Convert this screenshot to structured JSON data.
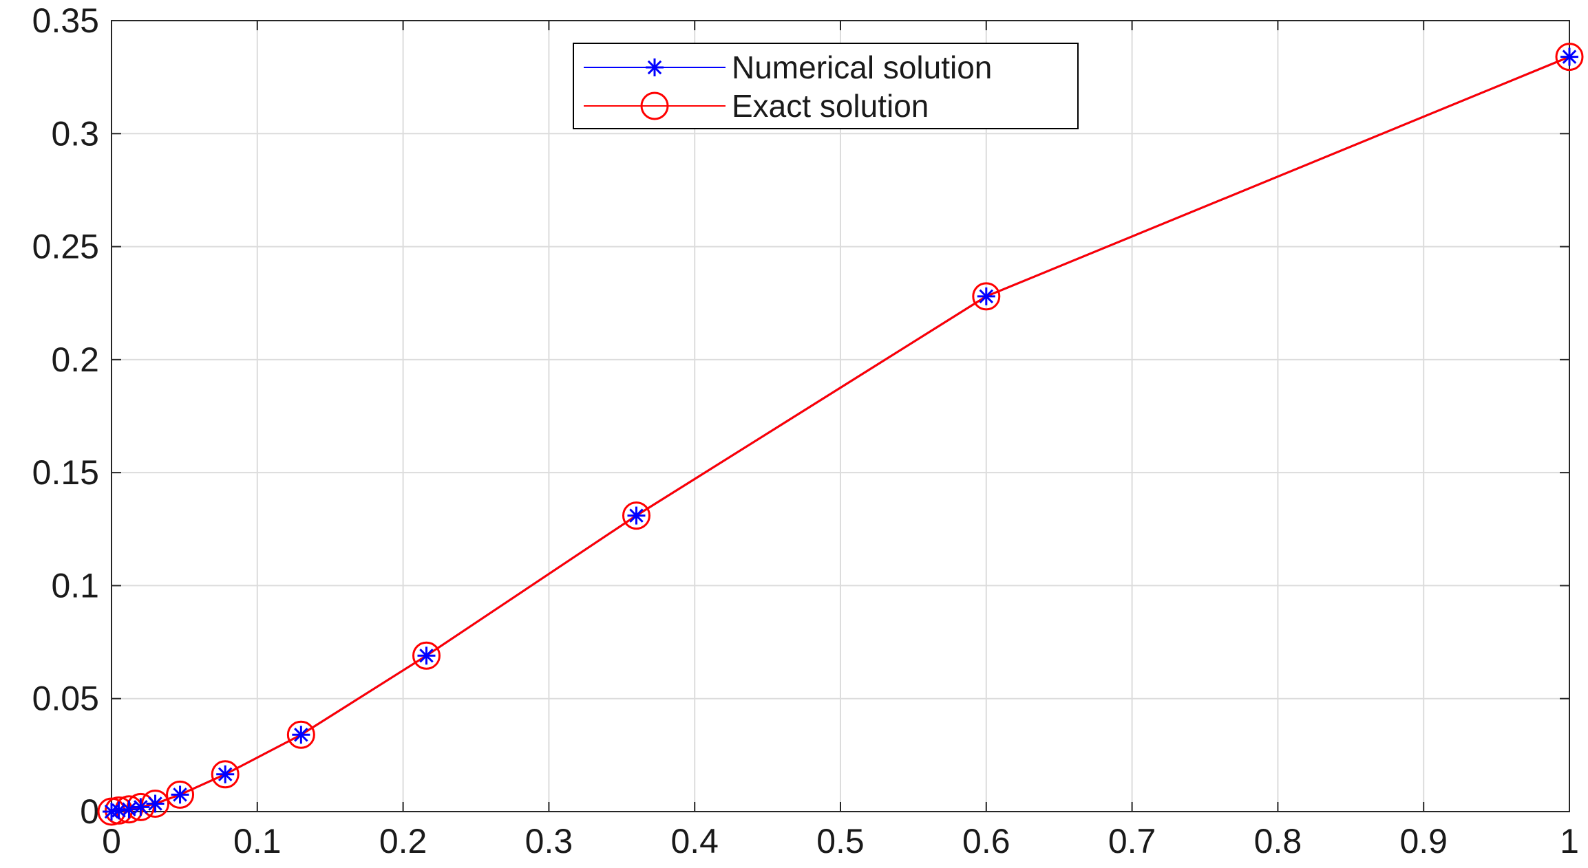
{
  "chart_data": {
    "type": "line",
    "title": "",
    "xlabel": "",
    "ylabel": "",
    "xlim": [
      0,
      1
    ],
    "ylim": [
      0,
      0.35
    ],
    "xticks": [
      "0",
      "0.1",
      "0.2",
      "0.3",
      "0.4",
      "0.5",
      "0.6",
      "0.7",
      "0.8",
      "0.9",
      "1"
    ],
    "yticks": [
      "0",
      "0.05",
      "0.1",
      "0.15",
      "0.2",
      "0.25",
      "0.3",
      "0.35"
    ],
    "grid": true,
    "legend_position": "top-center",
    "series": [
      {
        "name": "Numerical solution",
        "color": "#0000ff",
        "marker": "asterisk",
        "x": [
          0,
          0.005,
          0.012,
          0.02,
          0.03,
          0.047,
          0.078,
          0.13,
          0.216,
          0.36,
          0.6,
          1
        ],
        "y": [
          0,
          0.0005,
          0.001,
          0.002,
          0.0035,
          0.0075,
          0.0165,
          0.034,
          0.069,
          0.131,
          0.228,
          0.334
        ]
      },
      {
        "name": "Exact solution",
        "color": "#ff0000",
        "marker": "circle",
        "x": [
          0,
          0.005,
          0.012,
          0.02,
          0.03,
          0.047,
          0.078,
          0.13,
          0.216,
          0.36,
          0.6,
          1
        ],
        "y": [
          0,
          0.0005,
          0.001,
          0.002,
          0.0035,
          0.0075,
          0.0165,
          0.034,
          0.069,
          0.131,
          0.228,
          0.334
        ]
      }
    ]
  }
}
